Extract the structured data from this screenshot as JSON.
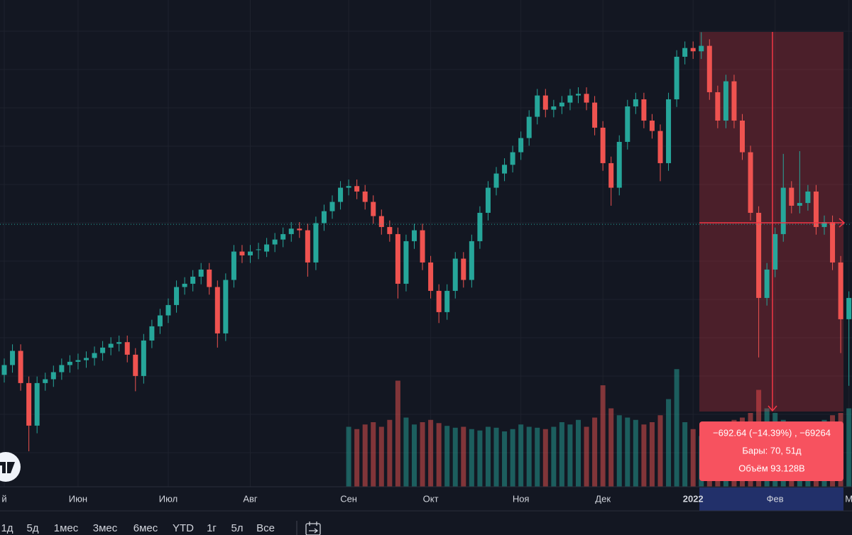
{
  "chart_data": {
    "type": "candlestick",
    "categories": [
      "й",
      null,
      null,
      null,
      null,
      null,
      null,
      null,
      null,
      "Июн",
      null,
      null,
      null,
      null,
      null,
      null,
      null,
      null,
      null,
      null,
      "Июл",
      null,
      null,
      null,
      null,
      null,
      null,
      null,
      null,
      null,
      "Авг",
      null,
      null,
      null,
      null,
      null,
      null,
      null,
      null,
      null,
      null,
      null,
      "Сен",
      null,
      null,
      null,
      null,
      null,
      null,
      null,
      null,
      null,
      "Окт",
      null,
      null,
      null,
      null,
      null,
      null,
      null,
      null,
      null,
      null,
      "Ноя",
      null,
      null,
      null,
      null,
      null,
      null,
      null,
      null,
      null,
      "Дек",
      null,
      null,
      null,
      null,
      null,
      null,
      null,
      null,
      null,
      null,
      "2022",
      null,
      null,
      null,
      null,
      null,
      null,
      null,
      null,
      null,
      "Фев",
      null,
      null,
      null,
      null,
      null,
      null,
      null,
      null,
      "М"
    ],
    "open": [
      4190,
      4208,
      4234,
      4175,
      4097,
      4175,
      4182,
      4195,
      4208,
      4214,
      4217,
      4221,
      4230,
      4240,
      4247,
      4250,
      4227,
      4188,
      4253,
      4279,
      4299,
      4318,
      4351,
      4357,
      4370,
      4383,
      4351,
      4266,
      4364,
      4416,
      4409,
      4420,
      4416,
      4429,
      4438,
      4448,
      4458,
      4455,
      4396,
      4468,
      4490,
      4507,
      4533,
      4536,
      4526,
      4507,
      4481,
      4461,
      4448,
      4357,
      4435,
      4455,
      4396,
      4344,
      4305,
      4344,
      4403,
      4364,
      4435,
      4487,
      4533,
      4559,
      4575,
      4598,
      4624,
      4663,
      4702,
      4676,
      4682,
      4689,
      4702,
      4705,
      4689,
      4643,
      4578,
      4533,
      4617,
      4682,
      4695,
      4656,
      4637,
      4578,
      4695,
      4773,
      4789,
      4783,
      4793,
      4708,
      4656,
      4728,
      4656,
      4598,
      4487,
      4331,
      4383,
      4448,
      4533,
      4500,
      4505,
      4526,
      4461,
      4470,
      4396,
      4292
    ],
    "close": [
      4208,
      4234,
      4175,
      4097,
      4175,
      4182,
      4195,
      4208,
      4214,
      4217,
      4221,
      4230,
      4240,
      4247,
      4250,
      4227,
      4188,
      4253,
      4279,
      4299,
      4318,
      4351,
      4357,
      4370,
      4383,
      4351,
      4266,
      4364,
      4416,
      4409,
      4416,
      4420,
      4429,
      4438,
      4448,
      4458,
      4455,
      4396,
      4468,
      4490,
      4507,
      4533,
      4536,
      4526,
      4507,
      4481,
      4461,
      4448,
      4357,
      4435,
      4455,
      4396,
      4344,
      4305,
      4344,
      4403,
      4364,
      4435,
      4487,
      4533,
      4559,
      4575,
      4598,
      4624,
      4663,
      4702,
      4676,
      4682,
      4689,
      4702,
      4705,
      4689,
      4643,
      4578,
      4533,
      4617,
      4682,
      4695,
      4656,
      4637,
      4578,
      4695,
      4773,
      4789,
      4783,
      4793,
      4708,
      4656,
      4728,
      4656,
      4598,
      4487,
      4331,
      4383,
      4448,
      4533,
      4500,
      4505,
      4526,
      4461,
      4470,
      4396,
      4292,
      4331
    ],
    "high": [
      4220,
      4246,
      4246,
      4187,
      4187,
      4194,
      4207,
      4220,
      4226,
      4229,
      4233,
      4242,
      4252,
      4259,
      4262,
      4262,
      4239,
      4265,
      4291,
      4311,
      4330,
      4363,
      4369,
      4382,
      4395,
      4395,
      4363,
      4376,
      4428,
      4428,
      4428,
      4432,
      4441,
      4450,
      4460,
      4470,
      4470,
      4467,
      4480,
      4502,
      4519,
      4545,
      4548,
      4548,
      4538,
      4519,
      4493,
      4473,
      4460,
      4447,
      4467,
      4467,
      4408,
      4356,
      4356,
      4415,
      4415,
      4447,
      4499,
      4545,
      4571,
      4587,
      4610,
      4636,
      4675,
      4714,
      4714,
      4694,
      4701,
      4714,
      4717,
      4717,
      4701,
      4655,
      4590,
      4629,
      4694,
      4707,
      4707,
      4668,
      4649,
      4707,
      4785,
      4801,
      4801,
      4818,
      4805,
      4720,
      4740,
      4740,
      4668,
      4610,
      4499,
      4395,
      4460,
      4595,
      4545,
      4600,
      4538,
      4538,
      4482,
      4482,
      4408,
      4343
    ],
    "low": [
      4176,
      4194,
      4161,
      4050,
      4083,
      4161,
      4168,
      4181,
      4194,
      4200,
      4203,
      4207,
      4216,
      4226,
      4233,
      4213,
      4160,
      4174,
      4239,
      4265,
      4285,
      4304,
      4337,
      4343,
      4356,
      4337,
      4240,
      4252,
      4350,
      4395,
      4395,
      4402,
      4406,
      4415,
      4424,
      4434,
      4441,
      4370,
      4382,
      4454,
      4476,
      4493,
      4519,
      4512,
      4493,
      4467,
      4447,
      4434,
      4330,
      4343,
      4421,
      4382,
      4330,
      4285,
      4291,
      4330,
      4350,
      4350,
      4421,
      4473,
      4519,
      4545,
      4561,
      4584,
      4610,
      4649,
      4662,
      4662,
      4668,
      4675,
      4688,
      4675,
      4629,
      4564,
      4500,
      4519,
      4603,
      4668,
      4642,
      4623,
      4545,
      4564,
      4681,
      4759,
      4769,
      4769,
      4694,
      4642,
      4642,
      4642,
      4584,
      4473,
      4222,
      4317,
      4369,
      4434,
      4486,
      4486,
      4491,
      4447,
      4447,
      4382,
      4230,
      4170
    ],
    "volume": [
      null,
      null,
      null,
      null,
      null,
      null,
      null,
      null,
      null,
      null,
      null,
      null,
      null,
      null,
      null,
      null,
      null,
      null,
      null,
      null,
      null,
      null,
      null,
      null,
      null,
      null,
      null,
      null,
      null,
      null,
      null,
      null,
      null,
      null,
      null,
      null,
      null,
      null,
      null,
      null,
      null,
      null,
      1.3,
      1.25,
      1.35,
      1.4,
      1.3,
      1.45,
      2.3,
      1.5,
      1.35,
      1.4,
      1.45,
      1.38,
      1.32,
      1.28,
      1.3,
      1.25,
      1.22,
      1.3,
      1.28,
      1.2,
      1.25,
      1.35,
      1.3,
      1.28,
      1.25,
      1.3,
      1.4,
      1.35,
      1.45,
      1.3,
      1.5,
      2.2,
      1.7,
      1.55,
      1.5,
      1.45,
      1.35,
      1.4,
      1.55,
      1.9,
      2.55,
      1.4,
      1.25,
      1.1,
      1.2,
      1.35,
      1.3,
      1.45,
      1.5,
      1.6,
      2.1,
      1.7,
      1.6,
      1.45,
      1.4,
      1.35,
      1.3,
      1.4,
      1.45,
      1.55,
      1.6,
      1.7
    ],
    "ylim": [
      3985,
      4877
    ],
    "volume_lim": [
      0,
      6
    ],
    "price_line": 4466,
    "up_color": "#26a69a",
    "down_color": "#ef5350",
    "measure": {
      "line1": "−692.64 (−14.39%) , −69264",
      "line2": "Бары: 70, 51д",
      "line3": "Объём 93.128B"
    },
    "range_buttons": [
      "1д",
      "5д",
      "1мес",
      "3мес",
      "6мес",
      "YTD",
      "1г",
      "5л",
      "Все"
    ]
  }
}
